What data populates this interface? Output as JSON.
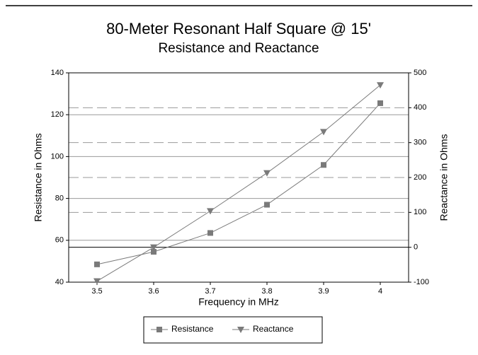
{
  "chart_data": {
    "type": "line",
    "title": "80-Meter Resonant Half Square @ 15'",
    "subtitle": "Resistance and Reactance",
    "x_label": "Frequency in MHz",
    "y_label": "Resistance in Ohms",
    "y2_label": "Reactance in Ohms",
    "x": [
      3.5,
      3.6,
      3.7,
      3.8,
      3.9,
      4
    ],
    "xlim": [
      3.45,
      4.05
    ],
    "xticks": [
      3.5,
      3.6,
      3.7,
      3.8,
      3.9,
      4
    ],
    "ylim": [
      40,
      140
    ],
    "yticks": [
      40,
      60,
      80,
      100,
      120,
      140
    ],
    "y2lim": [
      -100,
      500
    ],
    "y2ticks": [
      -100,
      0,
      100,
      200,
      300,
      400,
      500
    ],
    "grid": true,
    "legend": "bottom",
    "series": [
      {
        "name": "Resistance",
        "color": "#7a7a7a",
        "marker": "square",
        "values": [
          48.5,
          54.5,
          63.5,
          77,
          96,
          125.5
        ]
      },
      {
        "name": "Reactance",
        "color": "#7a7a7a",
        "marker": "triangle-down",
        "axis": "y2",
        "values": [
          -97,
          0,
          104,
          213,
          331,
          465
        ]
      }
    ]
  }
}
